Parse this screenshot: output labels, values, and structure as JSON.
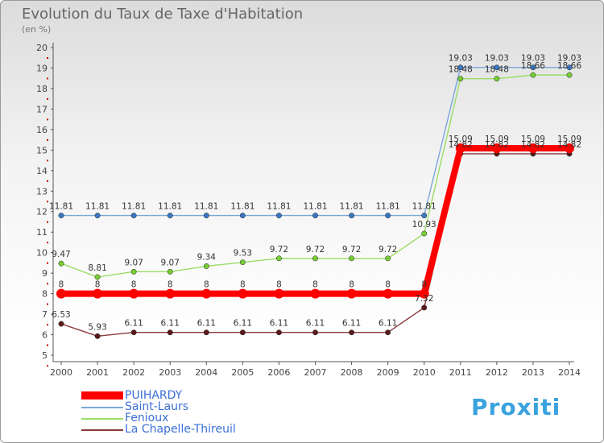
{
  "title": "Evolution du Taux de Taxe d'Habitation",
  "unit_label": "(en %)",
  "brand": "Proxiti",
  "chart_data": {
    "type": "line",
    "x": [
      "2000",
      "2001",
      "2002",
      "2003",
      "2004",
      "2005",
      "2006",
      "2007",
      "2008",
      "2009",
      "2010",
      "2011",
      "2012",
      "2013",
      "2014"
    ],
    "ylim": [
      5,
      20
    ],
    "y_ticks": [
      5,
      6,
      7,
      8,
      9,
      10,
      11,
      12,
      13,
      14,
      15,
      16,
      17,
      18,
      19,
      20
    ],
    "grid": false,
    "legend_position": "bottom-left",
    "series": [
      {
        "name": "PUIHARDY",
        "color": "#ff0000",
        "values": [
          8,
          8,
          8,
          8,
          8,
          8,
          8,
          8,
          8,
          8,
          8,
          15.09,
          15.09,
          15.09,
          15.09
        ],
        "labels": [
          "8",
          "8",
          "8",
          "8",
          "8",
          "8",
          "8",
          "8",
          "8",
          "8",
          "8",
          "15.09",
          "15.09",
          "15.09",
          "15.09"
        ]
      },
      {
        "name": "Saint-Laurs",
        "color": "#7aa7d8",
        "values": [
          11.81,
          11.81,
          11.81,
          11.81,
          11.81,
          11.81,
          11.81,
          11.81,
          11.81,
          11.81,
          11.81,
          19.03,
          19.03,
          19.03,
          19.03
        ],
        "labels": [
          "11.81",
          "11.81",
          "11.81",
          "11.81",
          "11.81",
          "11.81",
          "11.81",
          "11.81",
          "11.81",
          "11.81",
          "11.81",
          "19.03",
          "19.03",
          "19.03",
          "19.03"
        ]
      },
      {
        "name": "Fenioux",
        "color": "#99dd66",
        "values": [
          9.47,
          8.81,
          9.07,
          9.07,
          9.34,
          9.53,
          9.72,
          9.72,
          9.72,
          9.72,
          10.93,
          18.48,
          18.48,
          18.66,
          18.66
        ],
        "labels": [
          "9.47",
          "8.81",
          "9.07",
          "9.07",
          "9.34",
          "9.53",
          "9.72",
          "9.72",
          "9.72",
          "9.72",
          "10.93",
          "18.48",
          "18.48",
          "18.66",
          "18.66"
        ]
      },
      {
        "name": "La Chapelle-Thireuil",
        "color": "#8b3a3a",
        "values": [
          6.53,
          5.93,
          6.11,
          6.11,
          6.11,
          6.11,
          6.11,
          6.11,
          6.11,
          6.11,
          7.32,
          14.82,
          14.82,
          14.82,
          14.82
        ],
        "labels": [
          "6.53",
          "5.93",
          "6.11",
          "6.11",
          "6.11",
          "6.11",
          "6.11",
          "6.11",
          "6.11",
          "6.11",
          "7.32",
          "14.82",
          "14.82",
          "14.82",
          "14.82"
        ]
      }
    ]
  }
}
